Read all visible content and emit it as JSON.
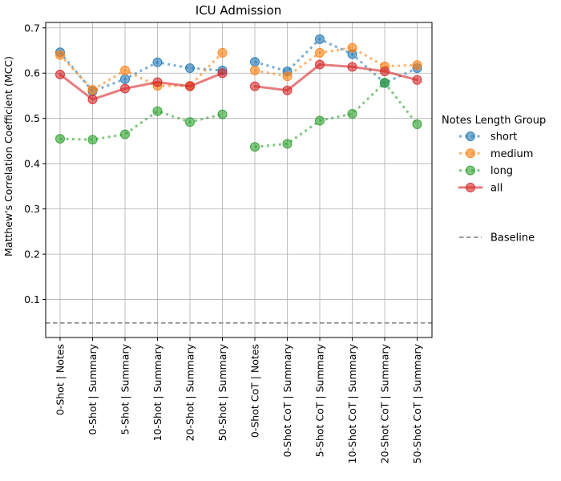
{
  "chart_data": {
    "type": "line",
    "title": "ICU Admission",
    "ylabel": "Matthew's Correlation Coefficient (MCC)",
    "xlabel": "",
    "ylim": [
      0.016,
      0.712
    ],
    "yticks": [
      0.1,
      0.2,
      0.3,
      0.4,
      0.5,
      0.6,
      0.7
    ],
    "grid": true,
    "categories": [
      "0-Shot | Notes",
      "0-Shot | Summary",
      "5-Shot | Summary",
      "10-Shot | Summary",
      "20-Shot | Summary",
      "50-Shot | Summary",
      "0-Shot CoT | Notes",
      "0-Shot CoT | Summary",
      "5-Shot CoT | Summary",
      "10-Shot CoT | Summary",
      "20-Shot CoT | Summary",
      "50-Shot CoT | Summary"
    ],
    "segments": [
      [
        0,
        5
      ],
      [
        6,
        11
      ]
    ],
    "legend_title": "Notes Length Group",
    "legend_position": "right",
    "series": [
      {
        "name": "short",
        "color": "#1f77b4",
        "style": "dotted",
        "values": [
          0.646,
          0.56,
          0.587,
          0.624,
          0.611,
          0.606,
          0.625,
          0.604,
          0.675,
          0.642,
          0.578,
          0.611
        ]
      },
      {
        "name": "medium",
        "color": "#ff7f0e",
        "style": "dotted",
        "values": [
          0.64,
          0.563,
          0.606,
          0.572,
          0.572,
          0.645,
          0.606,
          0.593,
          0.645,
          0.656,
          0.615,
          0.618
        ]
      },
      {
        "name": "long",
        "color": "#2ca02c",
        "style": "dotted",
        "values": [
          0.455,
          0.453,
          0.465,
          0.516,
          0.492,
          0.509,
          0.437,
          0.444,
          0.495,
          0.51,
          0.579,
          0.487
        ]
      },
      {
        "name": "all",
        "color": "#d62728",
        "style": "solid",
        "values": [
          0.597,
          0.542,
          0.566,
          0.58,
          0.571,
          0.6,
          0.571,
          0.562,
          0.619,
          0.614,
          0.604,
          0.585
        ]
      }
    ],
    "baseline": {
      "name": "Baseline",
      "value": 0.048,
      "color": "#7f7f7f",
      "style": "dashed"
    }
  }
}
